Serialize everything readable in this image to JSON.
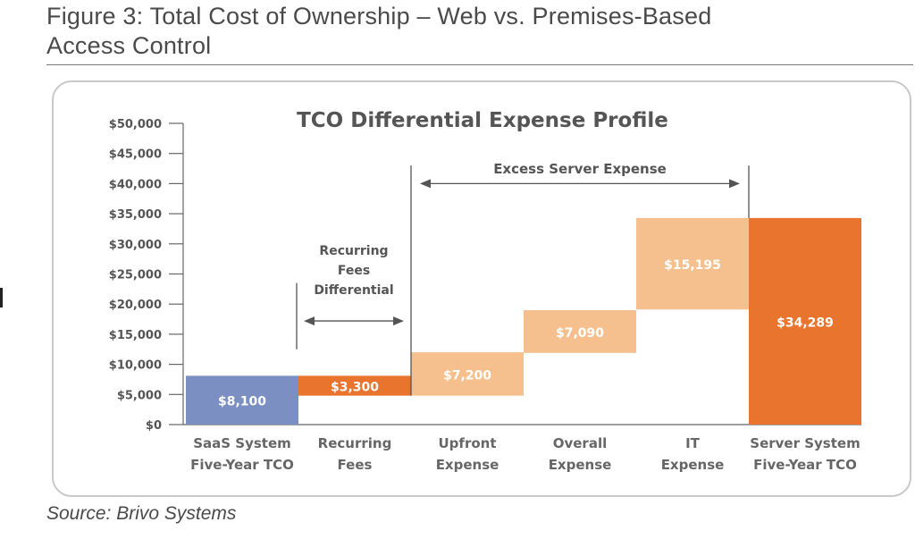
{
  "figure": {
    "title_line1": "Figure 3: Total Cost of Ownership – Web vs. Premises-Based",
    "title_line2": "Access Control",
    "source": "Source: Brivo Systems"
  },
  "chart_data": {
    "type": "bar",
    "subtype": "waterfall",
    "title": "TCO Differential Expense Profile",
    "xlabel": "",
    "ylabel": "",
    "ylim": [
      0,
      50000
    ],
    "yticks": [
      0,
      5000,
      10000,
      15000,
      20000,
      25000,
      30000,
      35000,
      40000,
      45000,
      50000
    ],
    "ytick_labels": [
      "$0",
      "$5,000",
      "$10,000",
      "$15,000",
      "$20,000",
      "$25,000",
      "$30,000",
      "$35,000",
      "$40,000",
      "$45,000",
      "$50,000"
    ],
    "categories": [
      [
        "SaaS System",
        "Five-Year TCO"
      ],
      [
        "Recurring",
        "Fees"
      ],
      [
        "Upfront",
        "Expense"
      ],
      [
        "Overall",
        "Expense"
      ],
      [
        "IT",
        "Expense"
      ],
      [
        "Server System",
        "Five-Year TCO"
      ]
    ],
    "bars": [
      {
        "base": 0,
        "value": 8100,
        "label": "$8,100",
        "color": "#7b8fc3"
      },
      {
        "base": 4800,
        "value": 3300,
        "label": "$3,300",
        "color": "#e8742e"
      },
      {
        "base": 4800,
        "value": 7200,
        "label": "$7,200",
        "color": "#f6c08e"
      },
      {
        "base": 11900,
        "value": 7090,
        "label": "$7,090",
        "color": "#f6c08e"
      },
      {
        "base": 19100,
        "value": 15195,
        "label": "$15,195",
        "color": "#f6c08e"
      },
      {
        "base": 0,
        "value": 34289,
        "label": "$34,289",
        "color": "#e8742e"
      }
    ],
    "annotations": {
      "recurring_fees": [
        "Recurring",
        "Fees",
        "Differential"
      ],
      "excess_server": "Excess Server Expense"
    },
    "grid": false,
    "legend": "none"
  }
}
